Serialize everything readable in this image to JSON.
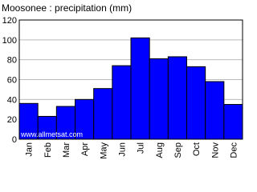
{
  "chart_data": {
    "type": "bar",
    "title": "Moosonee : precipitation (mm)",
    "categories": [
      "Jan",
      "Feb",
      "Mar",
      "Apr",
      "May",
      "Jun",
      "Jul",
      "Aug",
      "Sep",
      "Oct",
      "Nov",
      "Dec"
    ],
    "values": [
      36,
      23,
      33,
      40,
      51,
      74,
      102,
      81,
      83,
      73,
      58,
      35
    ],
    "color": "#0000ff",
    "ylim": [
      0,
      120
    ],
    "yticks": [
      0,
      20,
      40,
      60,
      80,
      100,
      120
    ],
    "grid": true,
    "annotation": "www.allmetsat.com"
  }
}
